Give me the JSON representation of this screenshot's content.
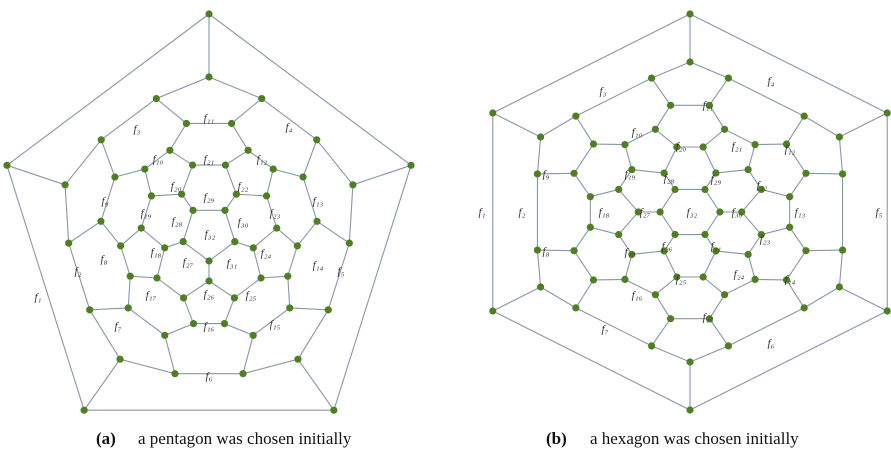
{
  "figure_a": {
    "faces": [
      "f₁",
      "f₂",
      "f₃",
      "f₄",
      "f₅",
      "f₆",
      "f₇",
      "f₈",
      "f₉",
      "f₁₀",
      "f₁₁",
      "f₁₂",
      "f₁₃",
      "f₁₄",
      "f₁₅",
      "f₁₆",
      "f₁₇",
      "f₁₈",
      "f₁₉",
      "f₂₀",
      "f₂₁",
      "f₂₂",
      "f₂₃",
      "f₂₄",
      "f₂₅",
      "f₂₆",
      "f₂₇",
      "f₂₈",
      "f₂₉",
      "f₃₀",
      "f₃₁",
      "f₃₂"
    ],
    "caption_tag": "(a)",
    "caption": "a pentagon was chosen initially"
  },
  "figure_b": {
    "faces": [
      "f₁",
      "f₂",
      "f₃",
      "f₄",
      "f₅",
      "f₆",
      "f₇",
      "f₈",
      "f₉",
      "f₁₀",
      "f₁₁",
      "f₁₂",
      "f₁₃",
      "f₁₄",
      "f₁₅",
      "f₁₆",
      "f₁₇",
      "f₁₈",
      "f₁₉",
      "f₂₀",
      "f₂₁",
      "f₂₂",
      "f₂₃",
      "f₂₄",
      "f₂₅",
      "f₂₆",
      "f₂₇",
      "f₂₈",
      "f₂₉",
      "f₃₀",
      "f₃₁",
      "f₃₂"
    ],
    "caption_tag": "(b)",
    "caption": "a hexagon was chosen initially"
  }
}
